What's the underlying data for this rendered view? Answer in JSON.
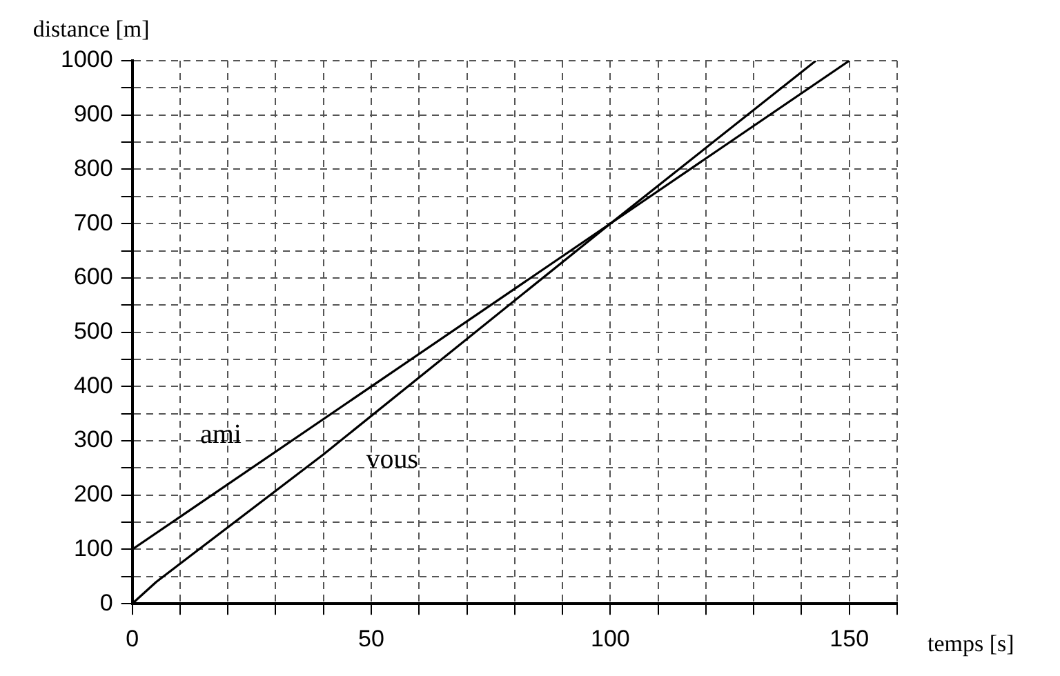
{
  "chart_data": {
    "type": "line",
    "xlabel": "temps [s]",
    "ylabel": "distance [m]",
    "series": [
      {
        "name": "ami",
        "color": "#000000",
        "x": [
          0,
          150
        ],
        "values": [
          100,
          1000
        ]
      },
      {
        "name": "vous",
        "color": "#000000",
        "x": [
          0,
          5,
          40,
          100,
          143
        ],
        "values": [
          0,
          40,
          275,
          700,
          1000
        ]
      }
    ],
    "xlim": [
      0,
      160
    ],
    "xticks": [
      0,
      {
        "value": 10,
        "label": null
      },
      {
        "value": 20,
        "label": null
      },
      {
        "value": 30,
        "label": null
      },
      {
        "value": 40,
        "label": null
      },
      50,
      {
        "value": 60,
        "label": null
      },
      {
        "value": 70,
        "label": null
      },
      {
        "value": 80,
        "label": null
      },
      {
        "value": 90,
        "label": null
      },
      100,
      {
        "value": 110,
        "label": null
      },
      {
        "value": 120,
        "label": null
      },
      {
        "value": 130,
        "label": null
      },
      {
        "value": 140,
        "label": null
      },
      150,
      {
        "value": 160,
        "label": null
      }
    ],
    "ylim": [
      0,
      1000
    ],
    "yticks": [
      0,
      {
        "value": 50,
        "label": null
      },
      100,
      {
        "value": 150,
        "label": null
      },
      200,
      {
        "value": 250,
        "label": null
      },
      300,
      {
        "value": 350,
        "label": null
      },
      400,
      {
        "value": 450,
        "label": null
      },
      500,
      {
        "value": 550,
        "label": null
      },
      600,
      {
        "value": 650,
        "label": null
      },
      700,
      {
        "value": 750,
        "label": null
      },
      800,
      {
        "value": 850,
        "label": null
      },
      900,
      {
        "value": 950,
        "label": null
      },
      1000
    ],
    "grid": true,
    "marker": "none",
    "line_style": "solid",
    "legend": false
  }
}
